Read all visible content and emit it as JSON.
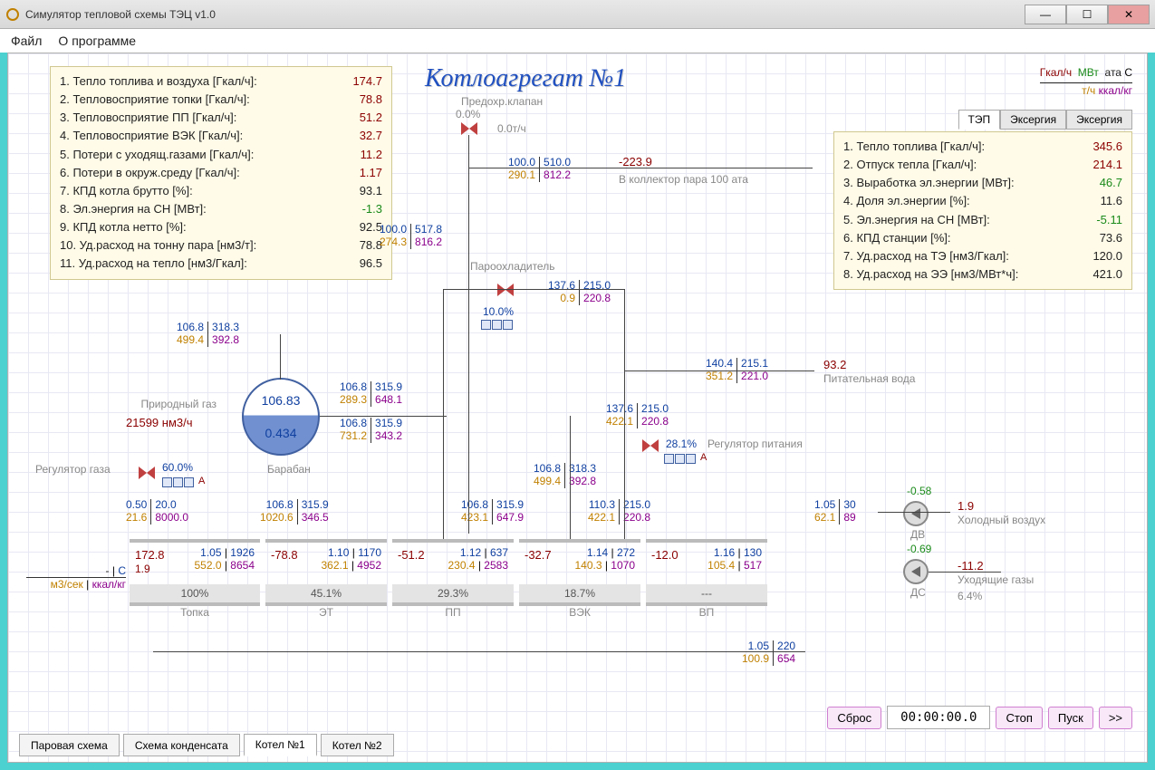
{
  "window": {
    "title": "Симулятор тепловой схемы ТЭЦ v1.0"
  },
  "menu": {
    "file": "Файл",
    "about": "О программе"
  },
  "main_title": "Котлоагрегат №1",
  "sub_title": "Предохр.клапан",
  "units_legend": {
    "row1": [
      "Гкал/ч",
      "МВт",
      "ата",
      "С"
    ],
    "row2": [
      "т/ч",
      "ккал/кг"
    ]
  },
  "left_panel": [
    {
      "n": "1.",
      "label": "Тепло топлива и воздуха [Гкал/ч]:",
      "val": "174.7",
      "cls": "val"
    },
    {
      "n": "2.",
      "label": "Тепловосприятие топки [Гкал/ч]:",
      "val": "78.8",
      "cls": "val"
    },
    {
      "n": "3.",
      "label": "Тепловосприятие ПП [Гкал/ч]:",
      "val": "51.2",
      "cls": "val"
    },
    {
      "n": "4.",
      "label": "Тепловосприятие ВЭК [Гкал/ч]:",
      "val": "32.7",
      "cls": "val"
    },
    {
      "n": "5.",
      "label": "Потери с уходящ.газами [Гкал/ч]:",
      "val": "11.2",
      "cls": "val"
    },
    {
      "n": "6.",
      "label": "Потери в окруж.среду [Гкал/ч]:",
      "val": "1.17",
      "cls": "val"
    },
    {
      "n": "7.",
      "label": "КПД котла брутто [%]:",
      "val": "93.1",
      "cls": "val black"
    },
    {
      "n": "8.",
      "label": "Эл.энергия на СН [МВт]:",
      "val": "-1.3",
      "cls": "val green"
    },
    {
      "n": "9.",
      "label": "КПД котла нетто [%]:",
      "val": "92.5",
      "cls": "val black"
    },
    {
      "n": "10.",
      "label": "Уд.расход на тонну пара [нм3/т]:",
      "val": "78.8",
      "cls": "val black"
    },
    {
      "n": "11.",
      "label": "Уд.расход на тепло [нм3/Гкал]:",
      "val": "96.5",
      "cls": "val black"
    }
  ],
  "right_tabs": [
    "ТЭП",
    "Эксергия",
    "Эксергия"
  ],
  "right_panel": [
    {
      "n": "1.",
      "label": "Тепло топлива [Гкал/ч]:",
      "val": "345.6",
      "cls": "val"
    },
    {
      "n": "2.",
      "label": "Отпуск тепла [Гкал/ч]:",
      "val": "214.1",
      "cls": "val"
    },
    {
      "n": "3.",
      "label": "Выработка эл.энергии [МВт]:",
      "val": "46.7",
      "cls": "val green"
    },
    {
      "n": "4.",
      "label": "Доля эл.энергии [%]:",
      "val": "11.6",
      "cls": "val black"
    },
    {
      "n": "5.",
      "label": "Эл.энергия на СН [МВт]:",
      "val": "-5.11",
      "cls": "val green"
    },
    {
      "n": "6.",
      "label": "КПД станции [%]:",
      "val": "73.6",
      "cls": "val black"
    },
    {
      "n": "7.",
      "label": "Уд.расход на ТЭ [нм3/Гкал]:",
      "val": "120.0",
      "cls": "val black"
    },
    {
      "n": "8.",
      "label": "Уд.расход на ЭЭ [нм3/МВт*ч]:",
      "val": "421.0",
      "cls": "val black"
    }
  ],
  "drum": {
    "p": "106.83",
    "lvl": "0.434",
    "label": "Барабан"
  },
  "gas": {
    "label": "Природный газ",
    "flow": "21599 нм3/ч",
    "regulator": "Регулятор газа"
  },
  "safety_valve": {
    "pct": "0.0%",
    "flow": "0.0т/ч"
  },
  "cooler": {
    "label": "Пароохладитель",
    "pct": "10.0%"
  },
  "feed": {
    "label": "Питательная вода",
    "regulator": "Регулятор питания",
    "val": "93.2",
    "pct": "28.1%"
  },
  "collector_label": "В коллектор пара 100 ата",
  "cold_air": {
    "label": "Холодный воздух",
    "val": "1.9"
  },
  "exhaust": {
    "label": "Уходящие газы",
    "val": "-11.2",
    "pct": "6.4%"
  },
  "fans": {
    "dv": {
      "label": "ДВ",
      "val": "-0.58"
    },
    "ds": {
      "label": "ДС",
      "val": "-0.69"
    }
  },
  "left_units": {
    "top": "- | С",
    "bot": "м3/сек | ккал/кг"
  },
  "gas_reg_pct": "60.0%",
  "pairs": {
    "p_top": {
      "a": "100.0",
      "b": "510.0",
      "c": "290.1",
      "d": "812.2",
      "e": "-223.9"
    },
    "p_mid": {
      "a": "100.0",
      "b": "517.8",
      "c": "274.3",
      "d": "816.2"
    },
    "p_cool": {
      "a": "137.6",
      "b": "215.0",
      "c": "0.9",
      "d": "220.8"
    },
    "p_drum_top": {
      "a": "106.8",
      "b": "318.3",
      "c": "499.4",
      "d": "392.8"
    },
    "p_drum_r1": {
      "a": "106.8",
      "b": "315.9",
      "c": "289.3",
      "d": "648.1"
    },
    "p_drum_r2": {
      "a": "106.8",
      "b": "315.9",
      "c": "731.2",
      "d": "343.2"
    },
    "p_feed1": {
      "a": "140.4",
      "b": "215.1",
      "c": "351.2",
      "d": "221.0"
    },
    "p_feed2": {
      "a": "137.6",
      "b": "215.0",
      "c": "422.1",
      "d": "220.8"
    },
    "p_midL": {
      "a": "106.8",
      "b": "318.3",
      "c": "499.4",
      "d": "392.8"
    },
    "p_r_topka": {
      "a": "0.50",
      "b": "20.0",
      "c": "21.6",
      "d": "8000.0"
    },
    "p_r_et": {
      "a": "106.8",
      "b": "315.9",
      "c": "1020.6",
      "d": "346.5"
    },
    "p_r_pp": {
      "a": "106.8",
      "b": "315.9",
      "c": "423.1",
      "d": "647.9"
    },
    "p_r_vek": {
      "a": "110.3",
      "b": "215.0",
      "c": "422.1",
      "d": "220.8"
    },
    "p_r_vp": {
      "a": "1.05",
      "b": "30",
      "c": "62.1",
      "d": "89"
    },
    "p_bot": {
      "a": "1.05",
      "b": "220",
      "c": "100.9",
      "d": "654"
    }
  },
  "heatrow": [
    {
      "name": "Топка",
      "pct": "100%",
      "h": "172.8",
      "sub": "1.9",
      "a": "1.05",
      "b": "1926",
      "c": "552.0",
      "d": "8654"
    },
    {
      "name": "ЭТ",
      "pct": "45.1%",
      "h": "-78.8",
      "a": "1.10",
      "b": "1170",
      "c": "362.1",
      "d": "4952"
    },
    {
      "name": "ПП",
      "pct": "29.3%",
      "h": "-51.2",
      "a": "1.12",
      "b": "637",
      "c": "230.4",
      "d": "2583"
    },
    {
      "name": "ВЭК",
      "pct": "18.7%",
      "h": "-32.7",
      "a": "1.14",
      "b": "272",
      "c": "140.3",
      "d": "1070"
    },
    {
      "name": "ВП",
      "pct": "---",
      "h": "-12.0",
      "a": "1.16",
      "b": "130",
      "c": "105.4",
      "d": "517"
    }
  ],
  "bottom_tabs": [
    "Паровая схема",
    "Схема конденсата",
    "Котел №1",
    "Котел №2"
  ],
  "controls": {
    "reset": "Сброс",
    "timer": "00:00:00.0",
    "stop": "Стоп",
    "start": "Пуск",
    "fwd": ">>"
  }
}
